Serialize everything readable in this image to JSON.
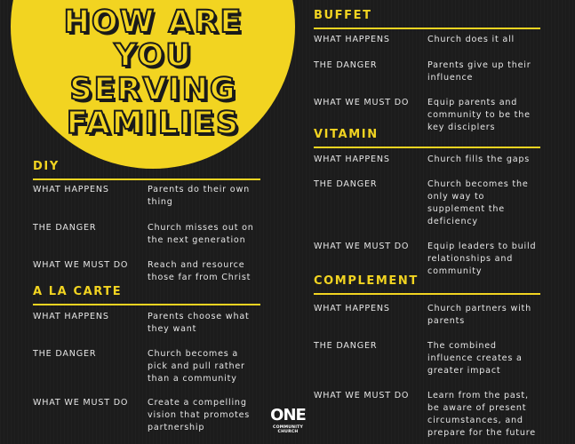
{
  "title": [
    "HOW ARE",
    "YOU",
    "SERVING",
    "FAMILIES"
  ],
  "sections": {
    "diy": {
      "name": "DIY",
      "rows": [
        {
          "key": "WHAT HAPPENS",
          "value": "Parents do their own thing"
        },
        {
          "key": "THE DANGER",
          "value": "Church misses out on the next generation"
        },
        {
          "key": "WHAT WE MUST DO",
          "value": "Reach and resource those far from Christ"
        }
      ]
    },
    "a_la_carte": {
      "name": "A LA CARTE",
      "rows": [
        {
          "key": "WHAT HAPPENS",
          "value": "Parents choose what they want"
        },
        {
          "key": "THE DANGER",
          "value": "Church becomes a pick and pull rather than a community"
        },
        {
          "key": "WHAT WE MUST DO",
          "value": "Create a compelling vision that promotes partnership"
        }
      ]
    },
    "buffet": {
      "name": "BUFFET",
      "rows": [
        {
          "key": "WHAT HAPPENS",
          "value": "Church does it all"
        },
        {
          "key": "THE DANGER",
          "value": "Parents give up their influence"
        },
        {
          "key": "WHAT WE MUST DO",
          "value": "Equip parents and community to be the key disciplers"
        }
      ]
    },
    "vitamin": {
      "name": "VITAMIN",
      "rows": [
        {
          "key": "WHAT HAPPENS",
          "value": "Church fills the gaps"
        },
        {
          "key": "THE DANGER",
          "value": "Church becomes the only way to supplement the deficiency"
        },
        {
          "key": "WHAT WE MUST DO",
          "value": "Equip leaders to build relationships and community"
        }
      ]
    },
    "complement": {
      "name": "COMPLEMENT",
      "rows": [
        {
          "key": "WHAT HAPPENS",
          "value": "Church partners with parents"
        },
        {
          "key": "THE DANGER",
          "value": "The combined influence creates a greater impact"
        },
        {
          "key": "WHAT WE MUST DO",
          "value": "Learn from the past, be aware of present circumstances, and prepare for the future"
        }
      ]
    }
  },
  "logo": {
    "mark": "ONE",
    "text": "COMMUNITY CHURCH"
  },
  "colors": {
    "accent": "#f2d421",
    "background": "#1c1c1c",
    "text": "#e6e6e6"
  }
}
